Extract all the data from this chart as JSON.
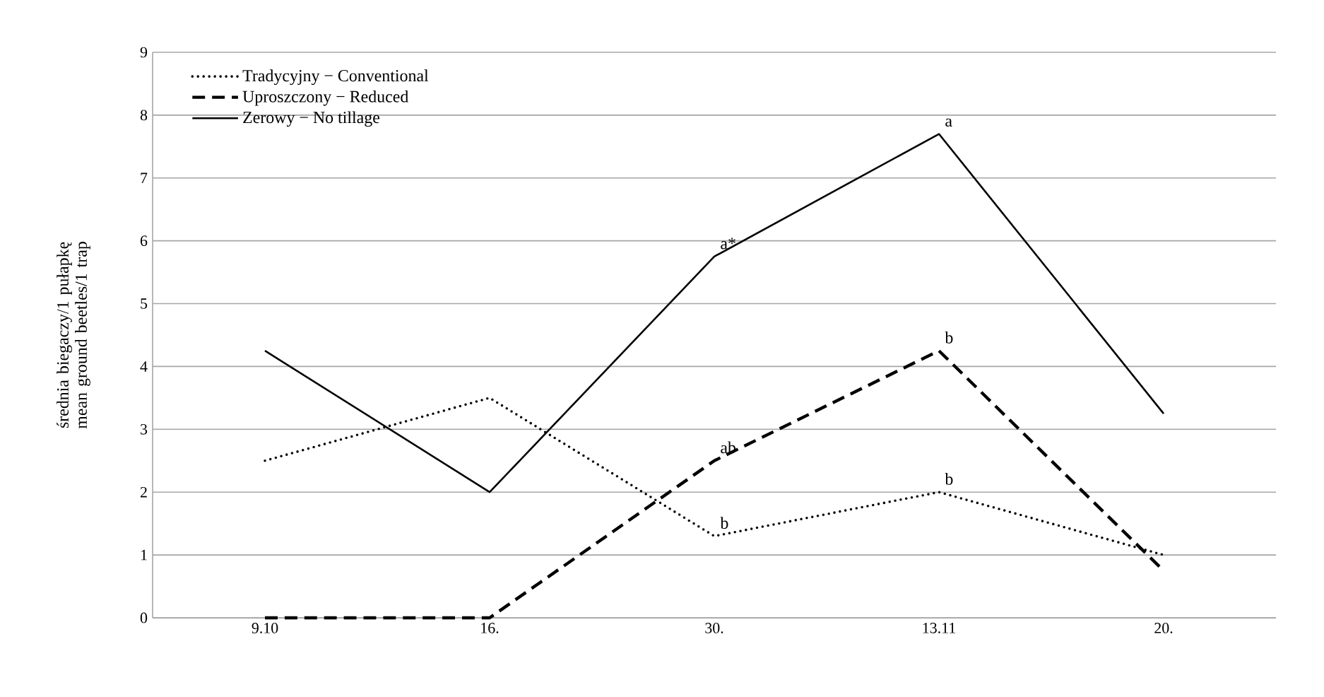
{
  "chart_data": {
    "type": "line",
    "ylabel": "średnia biegaczy/1 pułapkę\nmean ground beetles/1 trap",
    "categories": [
      "9.10",
      "16.",
      "30.",
      "13.11",
      "20."
    ],
    "series": [
      {
        "name": "Tradycyjny − Conventional",
        "color": "#000000",
        "line_style": "dotted",
        "values": [
          2.5,
          3.5,
          1.3,
          2.0,
          1.0
        ]
      },
      {
        "name": "Uproszczony − Reduced",
        "color": "#000000",
        "line_style": "dashed",
        "values": [
          0,
          0,
          2.5,
          4.25,
          0.75
        ]
      },
      {
        "name": "Zerowy − No tillage",
        "color": "#000000",
        "line_style": "solid",
        "values": [
          4.25,
          2.0,
          5.75,
          7.7,
          3.25
        ]
      }
    ],
    "ylim": [
      0,
      9
    ],
    "yticks": [
      0,
      1,
      2,
      3,
      4,
      5,
      6,
      7,
      8,
      9
    ],
    "grid": "y",
    "legend": "top left",
    "marker": "none",
    "annotations": [
      {
        "text": "a*",
        "x": "30.",
        "y": 5.75
      },
      {
        "text": "a",
        "x": "13.11",
        "y": 7.7
      },
      {
        "text": "ab",
        "x": "30.",
        "y": 2.5
      },
      {
        "text": "b",
        "x": "13.11",
        "y": 4.25
      },
      {
        "text": "b",
        "x": "30.",
        "y": 1.3
      },
      {
        "text": "b",
        "x": "13.11",
        "y": 2.0
      }
    ]
  }
}
